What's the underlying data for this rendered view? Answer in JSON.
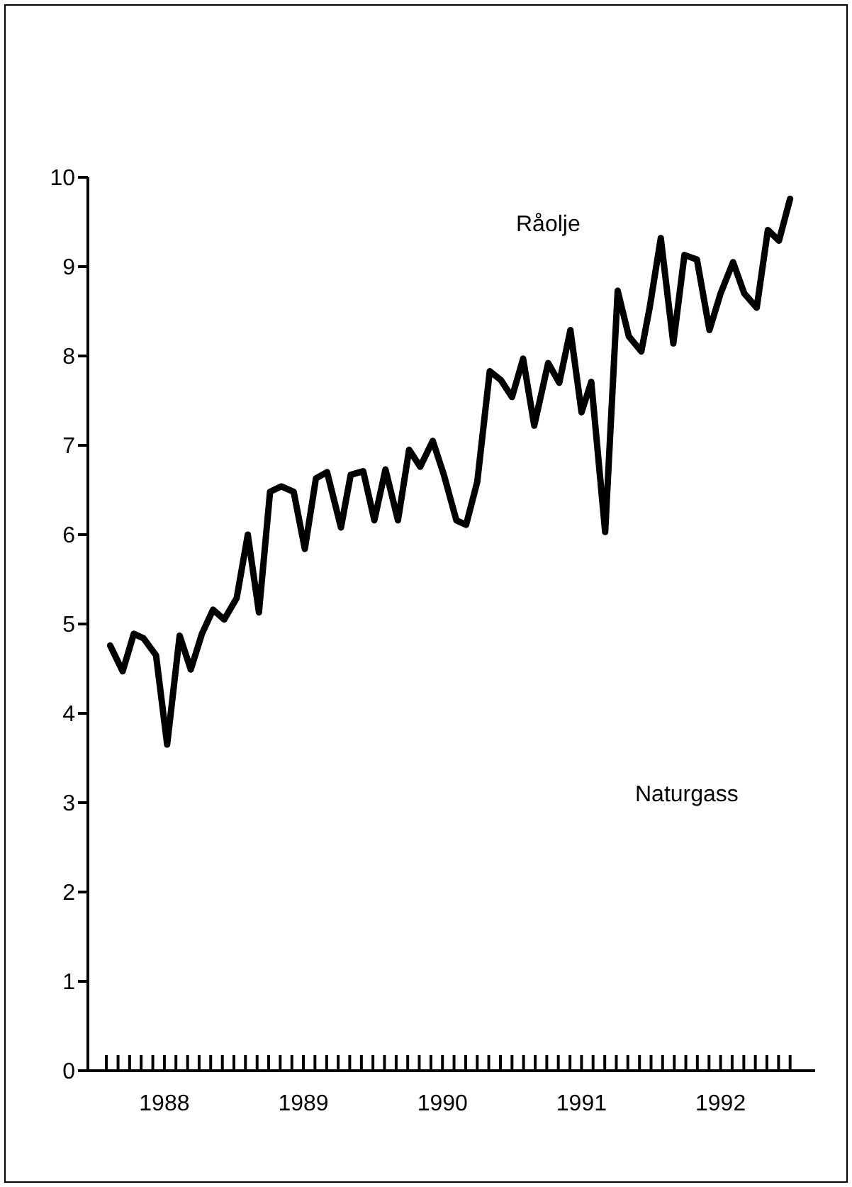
{
  "chart_data": {
    "type": "line",
    "annotations": [
      "Naturgass"
    ],
    "xlim": [
      1987.95,
      1993.18
    ],
    "ylim": [
      0,
      10
    ],
    "yticks": [
      0,
      1,
      2,
      3,
      4,
      5,
      6,
      7,
      8,
      9,
      10
    ],
    "xticks": [
      {
        "value": 1988.083,
        "label": null
      },
      {
        "value": 1988.167,
        "label": null
      },
      {
        "value": 1988.25,
        "label": null
      },
      {
        "value": 1988.333,
        "label": null
      },
      {
        "value": 1988.417,
        "label": null
      },
      {
        "value": 1988.5,
        "label": "1988"
      },
      {
        "value": 1988.583,
        "label": null
      },
      {
        "value": 1988.667,
        "label": null
      },
      {
        "value": 1988.75,
        "label": null
      },
      {
        "value": 1988.833,
        "label": null
      },
      {
        "value": 1988.917,
        "label": null
      },
      {
        "value": 1989.0,
        "label": null
      },
      {
        "value": 1989.083,
        "label": null
      },
      {
        "value": 1989.167,
        "label": null
      },
      {
        "value": 1989.25,
        "label": null
      },
      {
        "value": 1989.333,
        "label": null
      },
      {
        "value": 1989.417,
        "label": null
      },
      {
        "value": 1989.5,
        "label": "1989"
      },
      {
        "value": 1989.583,
        "label": null
      },
      {
        "value": 1989.667,
        "label": null
      },
      {
        "value": 1989.75,
        "label": null
      },
      {
        "value": 1989.833,
        "label": null
      },
      {
        "value": 1989.917,
        "label": null
      },
      {
        "value": 1990.0,
        "label": null
      },
      {
        "value": 1990.083,
        "label": null
      },
      {
        "value": 1990.167,
        "label": null
      },
      {
        "value": 1990.25,
        "label": null
      },
      {
        "value": 1990.333,
        "label": null
      },
      {
        "value": 1990.417,
        "label": null
      },
      {
        "value": 1990.5,
        "label": "1990"
      },
      {
        "value": 1990.583,
        "label": null
      },
      {
        "value": 1990.667,
        "label": null
      },
      {
        "value": 1990.75,
        "label": null
      },
      {
        "value": 1990.833,
        "label": null
      },
      {
        "value": 1990.917,
        "label": null
      },
      {
        "value": 1991.0,
        "label": null
      },
      {
        "value": 1991.083,
        "label": null
      },
      {
        "value": 1991.167,
        "label": null
      },
      {
        "value": 1991.25,
        "label": null
      },
      {
        "value": 1991.333,
        "label": null
      },
      {
        "value": 1991.417,
        "label": null
      },
      {
        "value": 1991.5,
        "label": "1991"
      },
      {
        "value": 1991.583,
        "label": null
      },
      {
        "value": 1991.667,
        "label": null
      },
      {
        "value": 1991.75,
        "label": null
      },
      {
        "value": 1991.833,
        "label": null
      },
      {
        "value": 1991.917,
        "label": null
      },
      {
        "value": 1992.0,
        "label": null
      },
      {
        "value": 1992.083,
        "label": null
      },
      {
        "value": 1992.167,
        "label": null
      },
      {
        "value": 1992.25,
        "label": null
      },
      {
        "value": 1992.333,
        "label": null
      },
      {
        "value": 1992.417,
        "label": null
      },
      {
        "value": 1992.5,
        "label": "1992"
      },
      {
        "value": 1992.583,
        "label": null
      },
      {
        "value": 1992.667,
        "label": null
      },
      {
        "value": 1992.75,
        "label": null
      },
      {
        "value": 1992.833,
        "label": null
      },
      {
        "value": 1992.917,
        "label": null
      },
      {
        "value": 1993.0,
        "label": null
      }
    ],
    "marker": "none",
    "line_style": "solid",
    "series": [
      {
        "name": "Råolje",
        "color": "#000000",
        "x": [
          1988.11,
          1988.2,
          1988.28,
          1988.35,
          1988.44,
          1988.52,
          1988.61,
          1988.69,
          1988.77,
          1988.85,
          1988.93,
          1989.02,
          1989.1,
          1989.18,
          1989.26,
          1989.34,
          1989.43,
          1989.51,
          1989.59,
          1989.67,
          1989.77,
          1989.84,
          1989.93,
          1990.01,
          1990.09,
          1990.18,
          1990.26,
          1990.34,
          1990.43,
          1990.51,
          1990.6,
          1990.67,
          1990.75,
          1990.84,
          1990.92,
          1991.0,
          1991.08,
          1991.16,
          1991.26,
          1991.34,
          1991.42,
          1991.5,
          1991.57,
          1991.67,
          1991.76,
          1991.84,
          1991.93,
          1991.99,
          1992.07,
          1992.16,
          1992.24,
          1992.33,
          1992.42,
          1992.5,
          1992.59,
          1992.67,
          1992.76,
          1992.84,
          1992.92,
          1993.0
        ],
        "values": [
          4.76,
          4.47,
          4.89,
          4.84,
          4.65,
          3.65,
          4.87,
          4.49,
          4.89,
          5.16,
          5.05,
          5.29,
          6.0,
          5.13,
          6.48,
          6.54,
          6.48,
          5.84,
          6.63,
          6.7,
          6.08,
          6.67,
          6.71,
          6.16,
          6.73,
          6.16,
          6.95,
          6.76,
          7.05,
          6.67,
          6.16,
          6.11,
          6.59,
          7.83,
          7.73,
          7.54,
          7.97,
          7.22,
          7.92,
          7.7,
          8.29,
          7.37,
          7.71,
          6.03,
          8.73,
          8.22,
          8.05,
          8.54,
          9.32,
          8.14,
          9.13,
          9.08,
          8.29,
          8.7,
          9.05,
          8.7,
          8.54,
          9.41,
          9.29,
          9.76
        ]
      }
    ]
  }
}
